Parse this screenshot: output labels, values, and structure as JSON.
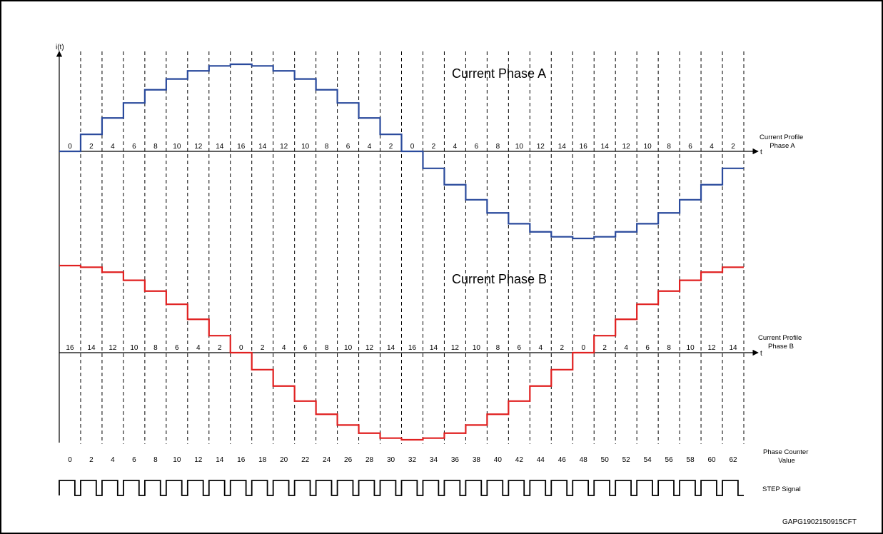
{
  "y_axis_label": "i(t)",
  "t_label": "t",
  "phase_a": {
    "title": "Current Phase A",
    "color": "#2a4a9c",
    "profile_label_line1": "Current Profile",
    "profile_label_line2": "Phase A",
    "counter_labels": [
      "0",
      "2",
      "4",
      "6",
      "8",
      "10",
      "12",
      "14",
      "16",
      "14",
      "12",
      "10",
      "8",
      "6",
      "4",
      "2",
      "0",
      "2",
      "4",
      "6",
      "8",
      "10",
      "12",
      "14",
      "16",
      "14",
      "12",
      "10",
      "8",
      "6",
      "4",
      "2"
    ],
    "levels": [
      0,
      0.195,
      0.383,
      0.556,
      0.707,
      0.831,
      0.924,
      0.981,
      1.0,
      0.981,
      0.924,
      0.831,
      0.707,
      0.556,
      0.383,
      0.195,
      0,
      -0.195,
      -0.383,
      -0.556,
      -0.707,
      -0.831,
      -0.924,
      -0.981,
      -1.0,
      -0.981,
      -0.924,
      -0.831,
      -0.707,
      -0.556,
      -0.383,
      -0.195
    ]
  },
  "phase_b": {
    "title": "Current Phase B",
    "color": "#e02020",
    "profile_label_line1": "Current Profile",
    "profile_label_line2": "Phase B",
    "counter_labels": [
      "16",
      "14",
      "12",
      "10",
      "8",
      "6",
      "4",
      "2",
      "0",
      "2",
      "4",
      "6",
      "8",
      "10",
      "12",
      "14",
      "16",
      "14",
      "12",
      "10",
      "8",
      "6",
      "4",
      "2",
      "0",
      "2",
      "4",
      "6",
      "8",
      "10",
      "12",
      "14"
    ],
    "levels": [
      1.0,
      0.981,
      0.924,
      0.831,
      0.707,
      0.556,
      0.383,
      0.195,
      0,
      -0.195,
      -0.383,
      -0.556,
      -0.707,
      -0.831,
      -0.924,
      -0.981,
      -1.0,
      -0.981,
      -0.924,
      -0.831,
      -0.707,
      -0.556,
      -0.383,
      -0.195,
      0,
      0.195,
      0.383,
      0.556,
      0.707,
      0.831,
      0.924,
      0.981
    ]
  },
  "phase_counter": {
    "label_line1": "Phase Counter",
    "label_line2": "Value",
    "values": [
      "0",
      "2",
      "4",
      "6",
      "8",
      "10",
      "12",
      "14",
      "16",
      "18",
      "20",
      "22",
      "24",
      "26",
      "28",
      "30",
      "32",
      "34",
      "36",
      "38",
      "40",
      "42",
      "44",
      "46",
      "48",
      "50",
      "52",
      "54",
      "56",
      "58",
      "60",
      "62"
    ]
  },
  "step_signal": {
    "label": "STEP Signal",
    "pulses": 32
  },
  "figure_id": "GAPG1902150915CFT"
}
